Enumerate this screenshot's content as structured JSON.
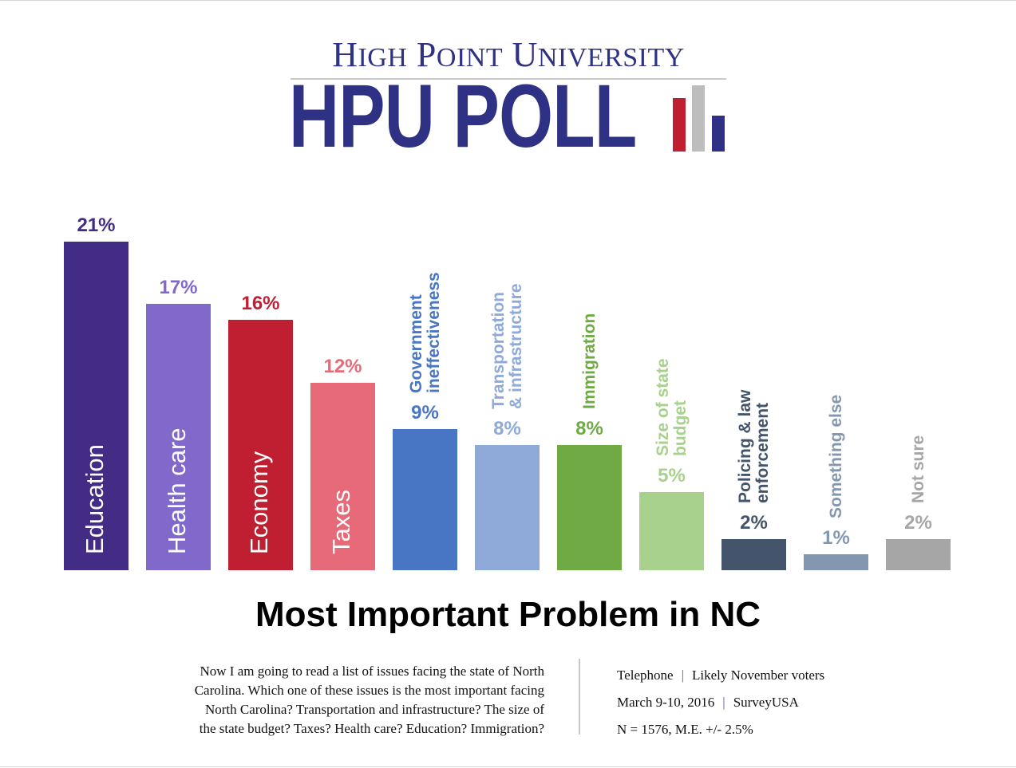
{
  "logo": {
    "university_first_letters": [
      "H",
      "P",
      "U"
    ],
    "university_text": "High Point University",
    "poll_text": "HPU POLL",
    "brand_colors": {
      "navy": "#2e3184",
      "red": "#c01f31",
      "grey": "#bdbdbd"
    }
  },
  "chart_data": {
    "type": "bar",
    "title": "Most Important Problem in NC",
    "xlabel": "",
    "ylabel": "",
    "ylim": [
      0,
      21
    ],
    "grid": false,
    "legend": "none",
    "categories": [
      "Education",
      "Health care",
      "Economy",
      "Taxes",
      "Government ineffectiveness",
      "Transportation & infrastructure",
      "Immigration",
      "Size of state budget",
      "Policing & law enforcement",
      "Something else",
      "Not sure"
    ],
    "values": [
      21,
      17,
      16,
      12,
      9,
      8,
      8,
      5,
      2,
      1,
      2
    ],
    "value_labels": [
      "21%",
      "17%",
      "16%",
      "12%",
      "9%",
      "8%",
      "8%",
      "5%",
      "2%",
      "1%",
      "2%"
    ],
    "colors": [
      "#432c85",
      "#8069cb",
      "#bf1f31",
      "#e66a77",
      "#4876c4",
      "#8faad9",
      "#70aa45",
      "#a9d18e",
      "#44546a",
      "#8497b0",
      "#a6a6a6"
    ],
    "label_lines": [
      [
        "Education"
      ],
      [
        "Health care"
      ],
      [
        "Economy"
      ],
      [
        "Taxes"
      ],
      [
        "Government",
        "ineffectiveness"
      ],
      [
        "Transportation",
        "& infrastructure"
      ],
      [
        "Immigration"
      ],
      [
        "Size of state",
        "budget"
      ],
      [
        "Policing & law",
        "enforcement"
      ],
      [
        "Something else"
      ],
      [
        "Not sure"
      ]
    ]
  },
  "footer": {
    "question": "Now I am going to read a list of issues facing the state of North Carolina. Which one of these issues is the most important facing North Carolina? Transportation and infrastructure? The size of the state budget? Taxes? Health care? Education? Immigration?",
    "question_lines": [
      "Now I am going to read a list of issues facing the state of North",
      "Carolina. Which one of these issues is the most important facing",
      "North Carolina? Transportation and infrastructure? The size of",
      "the state budget? Taxes? Health care? Education? Immigration?"
    ],
    "method": "Telephone",
    "population": "Likely November voters",
    "dates": "March 9-10, 2016",
    "pollster": "SurveyUSA",
    "sample": "N = 1576, M.E. +/- 2.5%",
    "separator": "|"
  }
}
